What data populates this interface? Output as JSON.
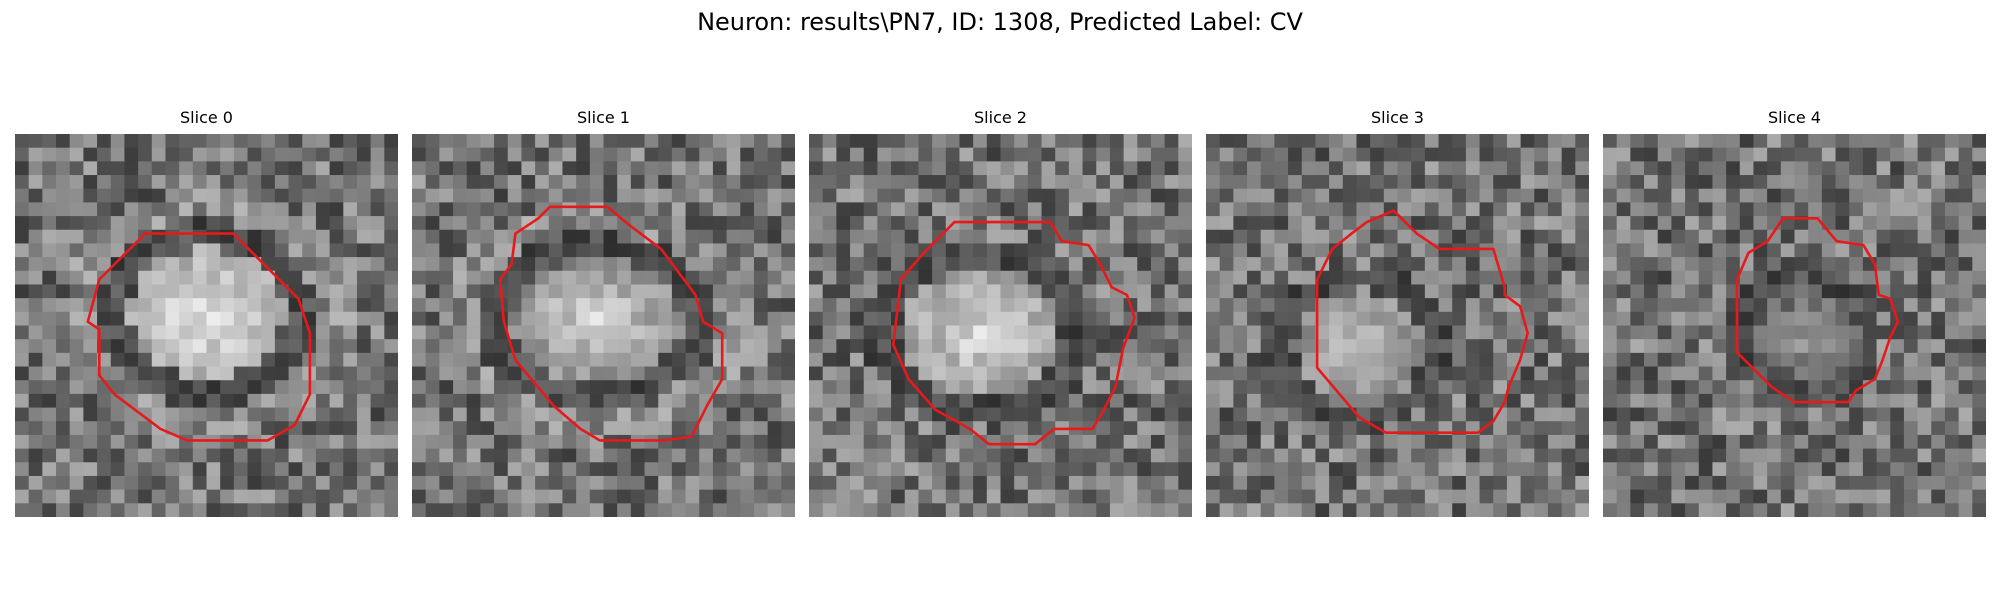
{
  "figure": {
    "title": "Neuron: results\\PN7, ID: 1308, Predicted Label: CV",
    "contour_color": "#e8191b",
    "slices": [
      {
        "label": "Slice 0",
        "icon": "em-grayscale-image",
        "contour": "present"
      },
      {
        "label": "Slice 1",
        "icon": "em-grayscale-image",
        "contour": "present"
      },
      {
        "label": "Slice 2",
        "icon": "em-grayscale-image",
        "contour": "present"
      },
      {
        "label": "Slice 3",
        "icon": "em-grayscale-image",
        "contour": "present"
      },
      {
        "label": "Slice 4",
        "icon": "em-grayscale-image",
        "contour": "present"
      }
    ]
  }
}
